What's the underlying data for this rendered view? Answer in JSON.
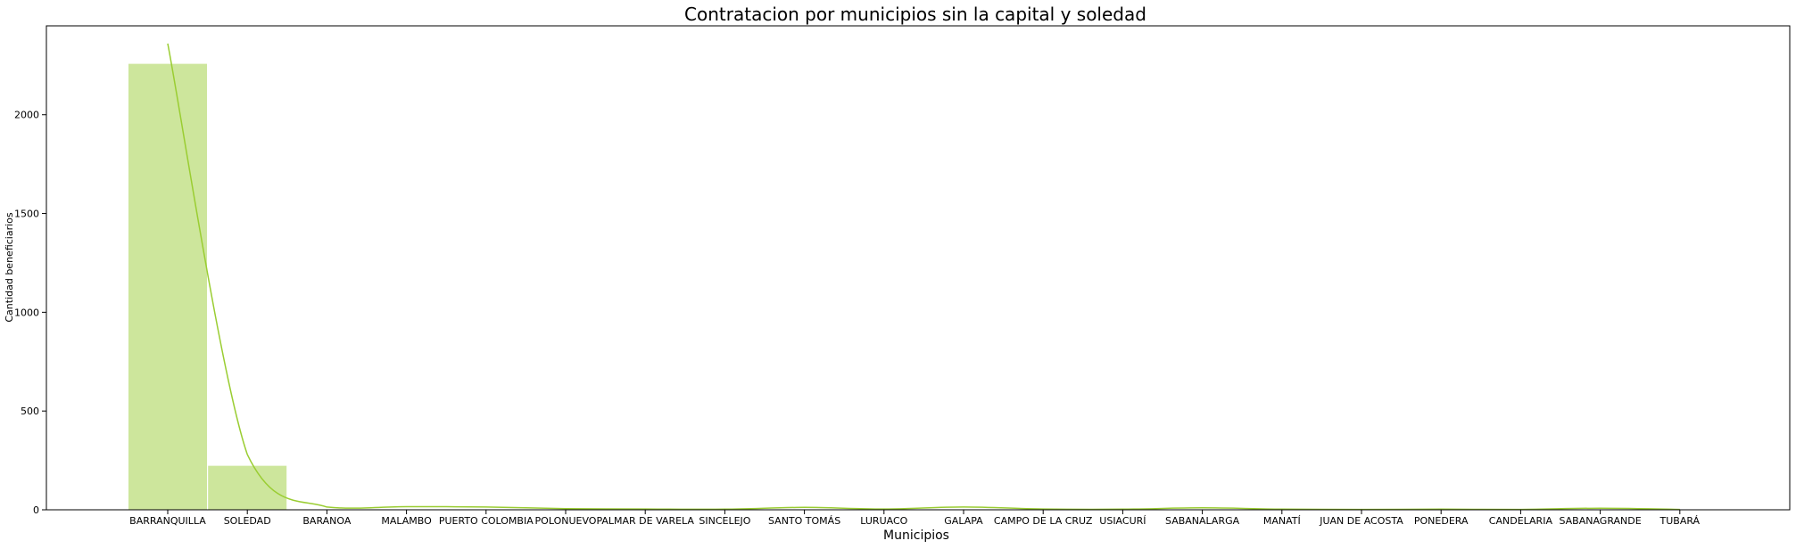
{
  "chart_data": {
    "type": "bar",
    "title": "Contratacion por municipios sin la capital y soledad",
    "xlabel": "Municipios",
    "ylabel": "Cantidad beneficiarios",
    "categories": [
      "BARRANQUILLA",
      "SOLEDAD",
      "BARANOA",
      "MALAMBO",
      "PUERTO COLOMBIA",
      "POLONUEVO",
      "PALMAR DE VARELA",
      "SINCELEJO",
      "SANTO TOMÁS",
      "LURUACO",
      "GALAPA",
      "CAMPO DE LA CRUZ",
      "USIACURÍ",
      "SABANALARGA",
      "MANATÍ",
      "JUAN DE ACOSTA",
      "PONEDERA",
      "CANDELARIA",
      "SABANAGRANDE",
      "TUBARÁ"
    ],
    "values": [
      2260,
      225,
      3,
      2,
      2,
      1,
      1,
      1,
      2,
      1,
      2,
      1,
      1,
      1,
      1,
      1,
      1,
      1,
      1,
      1
    ],
    "kde": [
      2360,
      280,
      14,
      16,
      14,
      6,
      4,
      3,
      12,
      4,
      14,
      4,
      3,
      10,
      3,
      2,
      3,
      2,
      8,
      2
    ],
    "ylim": [
      0,
      2450
    ],
    "yticks": [
      0,
      500,
      1000,
      1500,
      2000
    ],
    "grid": false,
    "bar_color": "#cde69c",
    "line_color": "#9acd32",
    "edge_color": "#ffffff"
  }
}
